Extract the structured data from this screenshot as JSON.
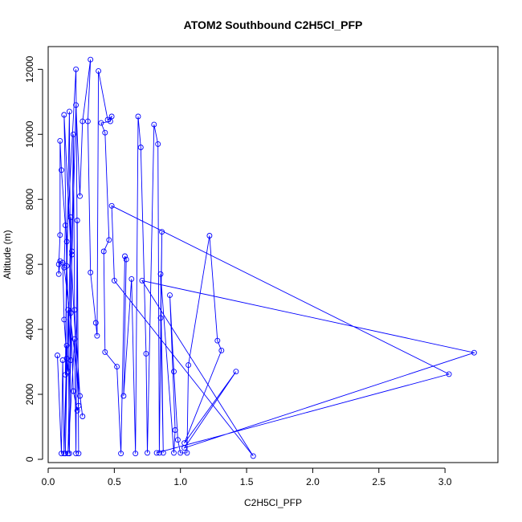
{
  "chart_data": {
    "type": "line",
    "title": "ATOM2 Southbound C2H5Cl_PFP",
    "xlabel": "C2H5Cl_PFP",
    "ylabel": "Altitude (m)",
    "xlim": [
      0,
      3.4
    ],
    "ylim": [
      -100,
      12700
    ],
    "x_ticks": [
      0.0,
      0.5,
      1.0,
      1.5,
      2.0,
      2.5,
      3.0
    ],
    "x_tick_labels": [
      "0.0",
      "0.5",
      "1.0",
      "1.5",
      "2.0",
      "2.5",
      "3.0"
    ],
    "y_ticks": [
      0,
      2000,
      4000,
      6000,
      8000,
      10000,
      12000
    ],
    "y_tick_labels": [
      "0",
      "2000",
      "4000",
      "6000",
      "8000",
      "10000",
      "12000"
    ],
    "grid": false,
    "legend": "none",
    "series": [
      {
        "color": "#0000ff",
        "marker": "open-circle",
        "points": [
          [
            0.07,
            3200
          ],
          [
            0.1,
            180
          ],
          [
            0.11,
            3050
          ],
          [
            0.12,
            180
          ],
          [
            0.14,
            3500
          ],
          [
            0.13,
            180
          ],
          [
            0.15,
            4600
          ],
          [
            0.16,
            180
          ],
          [
            0.18,
            6400
          ],
          [
            0.15,
            180
          ],
          [
            0.2,
            3700
          ],
          [
            0.21,
            180
          ],
          [
            0.22,
            7350
          ],
          [
            0.23,
            180
          ],
          [
            0.21,
            12000
          ],
          [
            0.14,
            6700
          ],
          [
            0.13,
            2600
          ],
          [
            0.16,
            10700
          ],
          [
            0.17,
            4500
          ],
          [
            0.19,
            2100
          ],
          [
            0.22,
            1500
          ],
          [
            0.23,
            1650
          ],
          [
            0.12,
            10600
          ],
          [
            0.14,
            5950
          ],
          [
            0.17,
            3050
          ],
          [
            0.19,
            10000
          ],
          [
            0.2,
            4600
          ],
          [
            0.24,
            1950
          ],
          [
            0.26,
            1320
          ],
          [
            0.12,
            5900
          ],
          [
            0.13,
            7200
          ],
          [
            0.1,
            8900
          ],
          [
            0.09,
            9800
          ],
          [
            0.09,
            6900
          ],
          [
            0.08,
            6000
          ],
          [
            0.08,
            5700
          ],
          [
            0.09,
            6100
          ],
          [
            0.11,
            6050
          ],
          [
            0.12,
            4300
          ],
          [
            0.14,
            3100
          ],
          [
            0.15,
            2700
          ],
          [
            0.17,
            7450
          ],
          [
            0.18,
            6300
          ],
          [
            0.21,
            10900
          ],
          [
            0.24,
            8100
          ],
          [
            0.26,
            10400
          ],
          [
            0.32,
            12300
          ],
          [
            0.3,
            10400
          ],
          [
            0.32,
            5750
          ],
          [
            0.36,
            4200
          ],
          [
            0.37,
            3800
          ],
          [
            0.38,
            11950
          ],
          [
            0.45,
            10450
          ],
          [
            0.48,
            10550
          ],
          [
            0.47,
            10400
          ],
          [
            0.4,
            10350
          ],
          [
            0.43,
            10050
          ],
          [
            0.46,
            6750
          ],
          [
            0.42,
            6400
          ],
          [
            0.43,
            3300
          ],
          [
            0.52,
            2850
          ],
          [
            0.55,
            180
          ],
          [
            0.58,
            6250
          ],
          [
            0.59,
            6150
          ],
          [
            0.57,
            1950
          ],
          [
            0.63,
            5550
          ],
          [
            0.66,
            180
          ],
          [
            0.68,
            10550
          ],
          [
            0.7,
            9600
          ],
          [
            0.74,
            3250
          ],
          [
            0.75,
            200
          ],
          [
            0.8,
            10300
          ],
          [
            0.83,
            9700
          ],
          [
            0.84,
            200
          ],
          [
            0.86,
            7000
          ],
          [
            0.85,
            4350
          ],
          [
            0.87,
            200
          ],
          [
            0.85,
            5700
          ],
          [
            0.95,
            200
          ],
          [
            0.96,
            900
          ],
          [
            0.92,
            5050
          ],
          [
            0.95,
            2700
          ],
          [
            0.98,
            600
          ],
          [
            1.0,
            200
          ],
          [
            1.05,
            200
          ],
          [
            1.06,
            2900
          ],
          [
            1.22,
            6880
          ],
          [
            1.28,
            3650
          ],
          [
            1.31,
            3350
          ],
          [
            1.03,
            500
          ],
          [
            1.42,
            2700
          ],
          [
            1.03,
            350
          ],
          [
            3.22,
            3280
          ],
          [
            0.71,
            5500
          ],
          [
            1.55,
            100
          ],
          [
            0.5,
            5500
          ],
          [
            0.48,
            7800
          ],
          [
            3.03,
            2620
          ],
          [
            0.82,
            200
          ]
        ]
      }
    ]
  }
}
